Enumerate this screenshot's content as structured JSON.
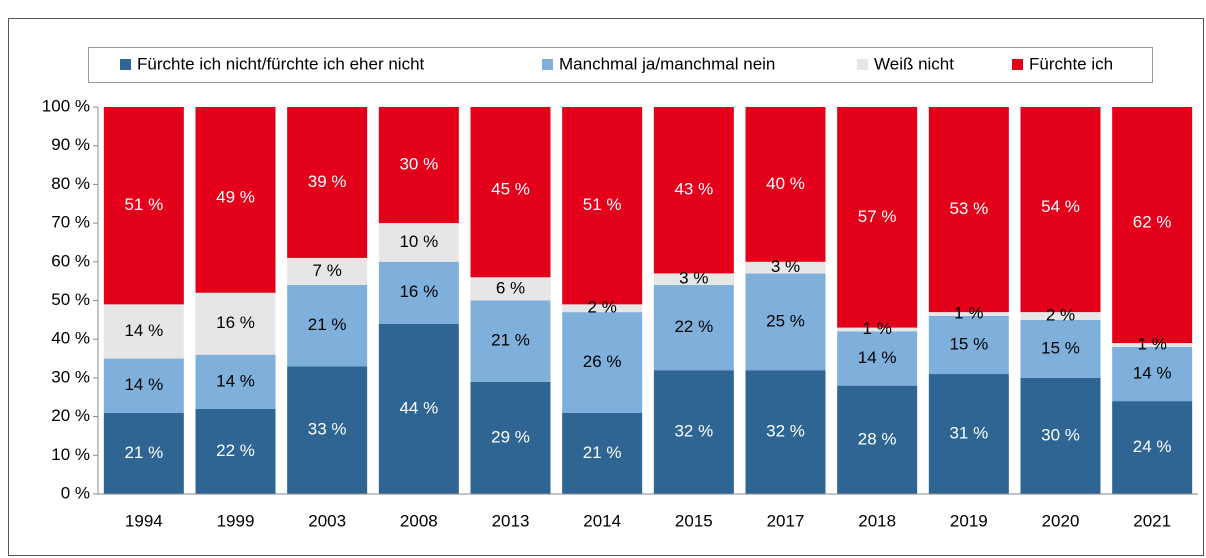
{
  "chart_data": {
    "type": "stacked_bar",
    "categories": [
      "1994",
      "1999",
      "2003",
      "2008",
      "2013",
      "2014",
      "2015",
      "2017",
      "2018",
      "2019",
      "2020",
      "2021"
    ],
    "series": [
      {
        "name": "Fürchte ich nicht/fürchte ich eher nicht",
        "color": "#2e6593",
        "values": [
          21,
          22,
          33,
          44,
          29,
          21,
          32,
          32,
          28,
          31,
          30,
          24
        ],
        "value_labels": [
          "21 %",
          "22 %",
          "33 %",
          "44 %",
          "29 %",
          "21 %",
          "32 %",
          "32 %",
          "28 %",
          "31 %",
          "30 %",
          "24 %"
        ]
      },
      {
        "name": "Manchmal ja/manchmal nein",
        "color": "#7fb0dc",
        "values": [
          14,
          14,
          21,
          16,
          21,
          26,
          22,
          25,
          14,
          15,
          15,
          14
        ],
        "value_labels": [
          "14 %",
          "14 %",
          "21 %",
          "16 %",
          "21 %",
          "26 %",
          "22 %",
          "25 %",
          "14 %",
          "15 %",
          "15 %",
          "14 %"
        ]
      },
      {
        "name": "Weiß nicht",
        "color": "#e6e6e6",
        "values": [
          14,
          16,
          7,
          10,
          6,
          2,
          3,
          3,
          1,
          1,
          2,
          1
        ],
        "value_labels": [
          "14 %",
          "16 %",
          "7 %",
          "10 %",
          "6 %",
          "2 %",
          "3 %",
          "3 %",
          "1 %",
          "1 %",
          "2 %",
          "1 %"
        ]
      },
      {
        "name": "Fürchte ich",
        "color": "#e3001b",
        "values": [
          51,
          49,
          39,
          30,
          45,
          51,
          43,
          40,
          57,
          53,
          54,
          62
        ],
        "value_labels": [
          "51 %",
          "49 %",
          "39 %",
          "30 %",
          "45 %",
          "51 %",
          "43 %",
          "40 %",
          "57 %",
          "53 %",
          "54 %",
          "62 %"
        ]
      }
    ],
    "ylim": [
      0,
      100
    ],
    "yticks": [
      {
        "value": 0,
        "label": "0 %"
      },
      {
        "value": 10,
        "label": "10 %"
      },
      {
        "value": 20,
        "label": "20 %"
      },
      {
        "value": 30,
        "label": "30 %"
      },
      {
        "value": 40,
        "label": "40 %"
      },
      {
        "value": 50,
        "label": "50 %"
      },
      {
        "value": 60,
        "label": "60 %"
      },
      {
        "value": 70,
        "label": "70 %"
      },
      {
        "value": 80,
        "label": "80 %"
      },
      {
        "value": 90,
        "label": "90 %"
      },
      {
        "value": 100,
        "label": "100 %"
      }
    ]
  }
}
